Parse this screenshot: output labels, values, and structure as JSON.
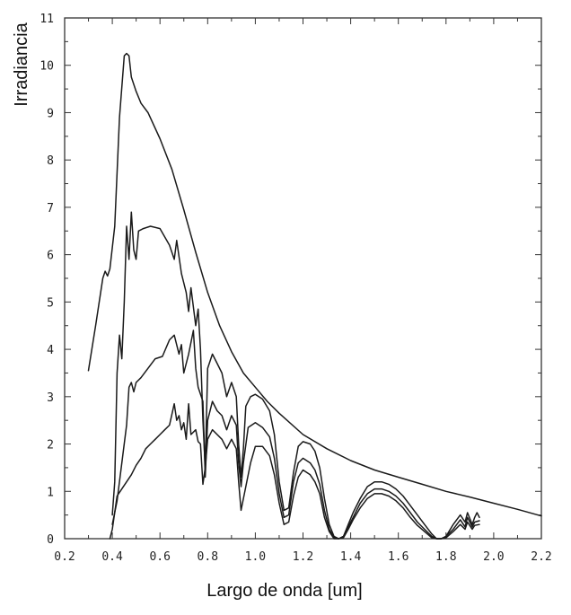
{
  "chart_data": {
    "type": "line",
    "title": "",
    "xlabel": "Largo de onda [um]",
    "ylabel": "Irradiancia",
    "xlim": [
      0.2,
      2.2
    ],
    "ylim": [
      0,
      11
    ],
    "x_ticks": [
      "0.2",
      "0.4",
      "0.6",
      "0.8",
      "1.0",
      "1.2",
      "1.4",
      "1.6",
      "1.8",
      "2.0",
      "2.2"
    ],
    "y_ticks": [
      "0",
      "1",
      "2",
      "3",
      "4",
      "5",
      "6",
      "7",
      "8",
      "9",
      "10",
      "11"
    ],
    "grid": false,
    "legend": "none",
    "series": [
      {
        "points": [
          [
            0.3,
            3.55
          ],
          [
            0.33,
            4.5
          ],
          [
            0.36,
            5.5
          ],
          [
            0.37,
            5.65
          ],
          [
            0.38,
            5.55
          ],
          [
            0.39,
            5.7
          ],
          [
            0.41,
            6.6
          ],
          [
            0.43,
            8.9
          ],
          [
            0.45,
            10.2
          ],
          [
            0.46,
            10.25
          ],
          [
            0.47,
            10.2
          ],
          [
            0.48,
            9.75
          ],
          [
            0.5,
            9.45
          ],
          [
            0.52,
            9.2
          ],
          [
            0.55,
            9.0
          ],
          [
            0.6,
            8.45
          ],
          [
            0.65,
            7.8
          ],
          [
            0.7,
            6.95
          ],
          [
            0.75,
            6.05
          ],
          [
            0.8,
            5.2
          ],
          [
            0.85,
            4.5
          ],
          [
            0.9,
            3.95
          ],
          [
            0.95,
            3.5
          ],
          [
            1.0,
            3.2
          ],
          [
            1.05,
            2.9
          ],
          [
            1.1,
            2.65
          ],
          [
            1.2,
            2.2
          ],
          [
            1.3,
            1.9
          ],
          [
            1.4,
            1.65
          ],
          [
            1.5,
            1.45
          ],
          [
            1.6,
            1.3
          ],
          [
            1.7,
            1.15
          ],
          [
            1.8,
            1.0
          ],
          [
            1.9,
            0.88
          ],
          [
            2.0,
            0.75
          ],
          [
            2.1,
            0.62
          ],
          [
            2.2,
            0.48
          ]
        ]
      },
      {
        "points": [
          [
            0.4,
            0.5
          ],
          [
            0.41,
            1.2
          ],
          [
            0.42,
            3.5
          ],
          [
            0.43,
            4.3
          ],
          [
            0.44,
            3.8
          ],
          [
            0.45,
            5.0
          ],
          [
            0.46,
            6.6
          ],
          [
            0.47,
            5.9
          ],
          [
            0.48,
            6.9
          ],
          [
            0.49,
            6.1
          ],
          [
            0.5,
            5.9
          ],
          [
            0.51,
            6.5
          ],
          [
            0.53,
            6.55
          ],
          [
            0.56,
            6.6
          ],
          [
            0.6,
            6.55
          ],
          [
            0.64,
            6.2
          ],
          [
            0.66,
            5.9
          ],
          [
            0.67,
            6.3
          ],
          [
            0.69,
            5.6
          ],
          [
            0.71,
            5.2
          ],
          [
            0.72,
            4.8
          ],
          [
            0.73,
            5.3
          ],
          [
            0.75,
            4.5
          ],
          [
            0.76,
            4.85
          ],
          [
            0.77,
            4.0
          ],
          [
            0.78,
            2.5
          ],
          [
            0.79,
            1.5
          ],
          [
            0.8,
            3.6
          ],
          [
            0.82,
            3.9
          ],
          [
            0.84,
            3.7
          ],
          [
            0.86,
            3.5
          ],
          [
            0.88,
            3.0
          ],
          [
            0.9,
            3.3
          ],
          [
            0.92,
            3.0
          ],
          [
            0.93,
            2.0
          ],
          [
            0.94,
            1.3
          ],
          [
            0.95,
            1.9
          ],
          [
            0.96,
            2.8
          ],
          [
            0.98,
            3.0
          ],
          [
            1.0,
            3.05
          ],
          [
            1.03,
            2.95
          ],
          [
            1.06,
            2.7
          ],
          [
            1.08,
            2.2
          ],
          [
            1.1,
            1.2
          ],
          [
            1.12,
            0.6
          ],
          [
            1.14,
            0.65
          ],
          [
            1.16,
            1.4
          ],
          [
            1.18,
            1.95
          ],
          [
            1.2,
            2.05
          ],
          [
            1.23,
            2.0
          ],
          [
            1.25,
            1.85
          ],
          [
            1.27,
            1.5
          ],
          [
            1.29,
            0.85
          ],
          [
            1.31,
            0.3
          ],
          [
            1.33,
            0.05
          ],
          [
            1.35,
            0.0
          ],
          [
            1.37,
            0.05
          ],
          [
            1.39,
            0.3
          ],
          [
            1.41,
            0.55
          ],
          [
            1.44,
            0.85
          ],
          [
            1.47,
            1.1
          ],
          [
            1.5,
            1.2
          ],
          [
            1.53,
            1.2
          ],
          [
            1.56,
            1.15
          ],
          [
            1.59,
            1.05
          ],
          [
            1.62,
            0.9
          ],
          [
            1.65,
            0.7
          ],
          [
            1.68,
            0.5
          ],
          [
            1.71,
            0.3
          ],
          [
            1.74,
            0.1
          ],
          [
            1.76,
            0.0
          ],
          [
            1.78,
            0.0
          ],
          [
            1.8,
            0.05
          ],
          [
            1.83,
            0.3
          ],
          [
            1.86,
            0.5
          ],
          [
            1.88,
            0.35
          ],
          [
            1.89,
            0.55
          ],
          [
            1.91,
            0.3
          ],
          [
            1.92,
            0.45
          ],
          [
            1.93,
            0.55
          ],
          [
            1.94,
            0.45
          ]
        ]
      },
      {
        "points": [
          [
            0.4,
            0.3
          ],
          [
            0.42,
            0.8
          ],
          [
            0.44,
            1.6
          ],
          [
            0.46,
            2.4
          ],
          [
            0.47,
            3.2
          ],
          [
            0.48,
            3.3
          ],
          [
            0.49,
            3.1
          ],
          [
            0.5,
            3.3
          ],
          [
            0.52,
            3.4
          ],
          [
            0.55,
            3.6
          ],
          [
            0.58,
            3.8
          ],
          [
            0.61,
            3.85
          ],
          [
            0.64,
            4.2
          ],
          [
            0.66,
            4.3
          ],
          [
            0.68,
            3.9
          ],
          [
            0.69,
            4.1
          ],
          [
            0.7,
            3.5
          ],
          [
            0.72,
            3.9
          ],
          [
            0.74,
            4.4
          ],
          [
            0.75,
            3.6
          ],
          [
            0.76,
            3.2
          ],
          [
            0.78,
            2.9
          ],
          [
            0.79,
            1.3
          ],
          [
            0.8,
            2.5
          ],
          [
            0.82,
            2.9
          ],
          [
            0.84,
            2.7
          ],
          [
            0.86,
            2.6
          ],
          [
            0.88,
            2.3
          ],
          [
            0.9,
            2.6
          ],
          [
            0.92,
            2.4
          ],
          [
            0.93,
            1.6
          ],
          [
            0.94,
            1.1
          ],
          [
            0.95,
            1.6
          ],
          [
            0.97,
            2.35
          ],
          [
            1.0,
            2.45
          ],
          [
            1.03,
            2.35
          ],
          [
            1.06,
            2.15
          ],
          [
            1.08,
            1.7
          ],
          [
            1.1,
            0.95
          ],
          [
            1.12,
            0.45
          ],
          [
            1.14,
            0.5
          ],
          [
            1.16,
            1.2
          ],
          [
            1.18,
            1.6
          ],
          [
            1.2,
            1.7
          ],
          [
            1.23,
            1.6
          ],
          [
            1.25,
            1.45
          ],
          [
            1.27,
            1.15
          ],
          [
            1.29,
            0.6
          ],
          [
            1.31,
            0.2
          ],
          [
            1.33,
            0.02
          ],
          [
            1.35,
            0.0
          ],
          [
            1.37,
            0.05
          ],
          [
            1.39,
            0.25
          ],
          [
            1.41,
            0.45
          ],
          [
            1.44,
            0.75
          ],
          [
            1.47,
            0.95
          ],
          [
            1.5,
            1.05
          ],
          [
            1.53,
            1.05
          ],
          [
            1.56,
            1.0
          ],
          [
            1.59,
            0.9
          ],
          [
            1.62,
            0.75
          ],
          [
            1.65,
            0.55
          ],
          [
            1.68,
            0.35
          ],
          [
            1.71,
            0.2
          ],
          [
            1.74,
            0.05
          ],
          [
            1.76,
            0.0
          ],
          [
            1.78,
            0.0
          ],
          [
            1.8,
            0.05
          ],
          [
            1.83,
            0.2
          ],
          [
            1.86,
            0.4
          ],
          [
            1.88,
            0.25
          ],
          [
            1.89,
            0.45
          ],
          [
            1.91,
            0.25
          ],
          [
            1.92,
            0.35
          ],
          [
            1.94,
            0.38
          ]
        ]
      },
      {
        "points": [
          [
            0.39,
            0.0
          ],
          [
            0.4,
            0.2
          ],
          [
            0.42,
            0.9
          ],
          [
            0.44,
            1.05
          ],
          [
            0.46,
            1.2
          ],
          [
            0.48,
            1.35
          ],
          [
            0.5,
            1.55
          ],
          [
            0.52,
            1.7
          ],
          [
            0.54,
            1.9
          ],
          [
            0.56,
            2.0
          ],
          [
            0.58,
            2.1
          ],
          [
            0.6,
            2.2
          ],
          [
            0.62,
            2.3
          ],
          [
            0.64,
            2.4
          ],
          [
            0.66,
            2.85
          ],
          [
            0.67,
            2.5
          ],
          [
            0.68,
            2.6
          ],
          [
            0.69,
            2.3
          ],
          [
            0.7,
            2.45
          ],
          [
            0.71,
            2.1
          ],
          [
            0.72,
            2.85
          ],
          [
            0.73,
            2.2
          ],
          [
            0.75,
            2.3
          ],
          [
            0.76,
            2.05
          ],
          [
            0.77,
            2.0
          ],
          [
            0.78,
            1.15
          ],
          [
            0.79,
            1.5
          ],
          [
            0.8,
            2.1
          ],
          [
            0.82,
            2.3
          ],
          [
            0.84,
            2.2
          ],
          [
            0.86,
            2.1
          ],
          [
            0.88,
            1.9
          ],
          [
            0.9,
            2.1
          ],
          [
            0.92,
            1.9
          ],
          [
            0.93,
            1.2
          ],
          [
            0.94,
            0.6
          ],
          [
            0.96,
            1.1
          ],
          [
            0.98,
            1.6
          ],
          [
            1.0,
            1.95
          ],
          [
            1.03,
            1.95
          ],
          [
            1.06,
            1.75
          ],
          [
            1.08,
            1.35
          ],
          [
            1.1,
            0.75
          ],
          [
            1.12,
            0.3
          ],
          [
            1.14,
            0.35
          ],
          [
            1.16,
            0.9
          ],
          [
            1.18,
            1.3
          ],
          [
            1.2,
            1.45
          ],
          [
            1.23,
            1.35
          ],
          [
            1.25,
            1.2
          ],
          [
            1.27,
            0.95
          ],
          [
            1.29,
            0.45
          ],
          [
            1.31,
            0.15
          ],
          [
            1.33,
            0.0
          ],
          [
            1.35,
            0.0
          ],
          [
            1.37,
            0.02
          ],
          [
            1.39,
            0.2
          ],
          [
            1.41,
            0.4
          ],
          [
            1.44,
            0.65
          ],
          [
            1.47,
            0.85
          ],
          [
            1.5,
            0.95
          ],
          [
            1.53,
            0.95
          ],
          [
            1.56,
            0.9
          ],
          [
            1.59,
            0.8
          ],
          [
            1.62,
            0.65
          ],
          [
            1.65,
            0.45
          ],
          [
            1.68,
            0.28
          ],
          [
            1.71,
            0.15
          ],
          [
            1.74,
            0.02
          ],
          [
            1.76,
            0.0
          ],
          [
            1.78,
            0.0
          ],
          [
            1.8,
            0.02
          ],
          [
            1.83,
            0.15
          ],
          [
            1.86,
            0.3
          ],
          [
            1.88,
            0.2
          ],
          [
            1.89,
            0.35
          ],
          [
            1.91,
            0.2
          ],
          [
            1.92,
            0.28
          ],
          [
            1.94,
            0.3
          ]
        ]
      }
    ]
  }
}
